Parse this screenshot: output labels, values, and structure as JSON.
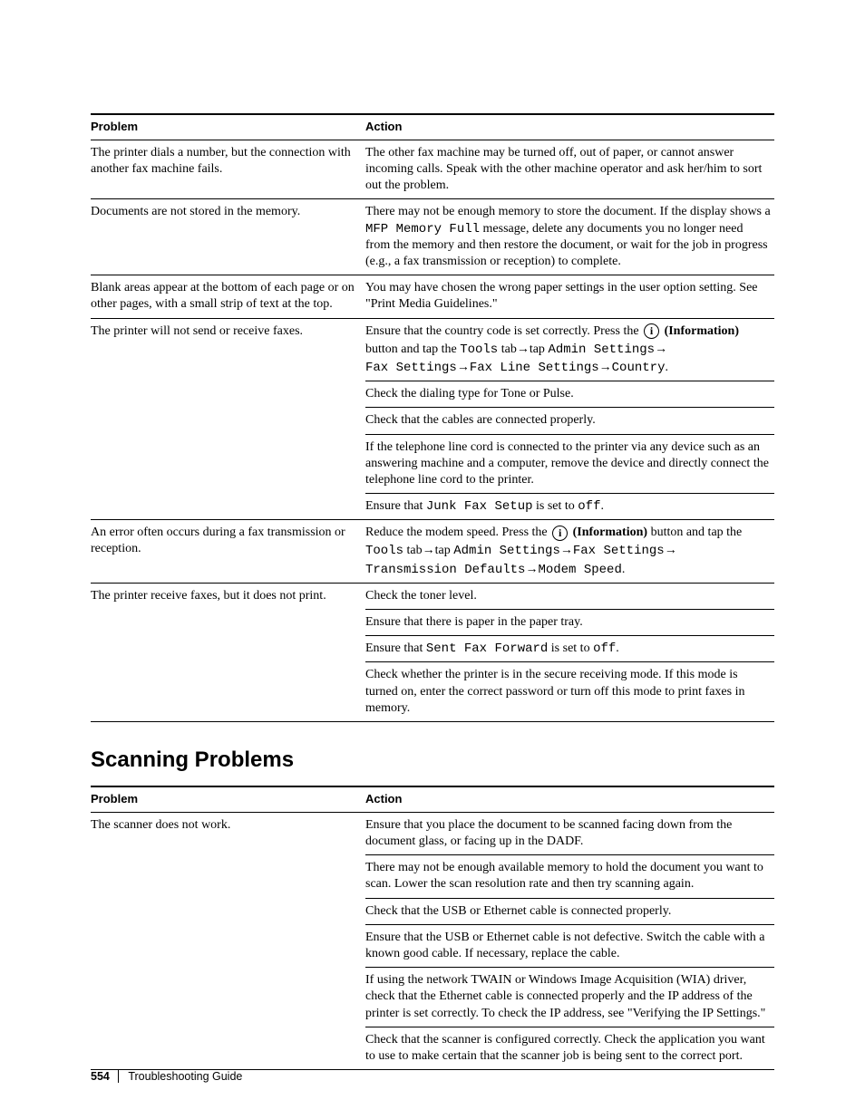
{
  "table1": {
    "headers": {
      "col1": "Problem",
      "col2": "Action"
    },
    "rows": [
      {
        "problem": "The printer dials a number, but the connection with another fax machine fails.",
        "actions": [
          {
            "type": "text",
            "content": "The other fax machine may be turned off, out of paper, or cannot answer incoming calls. Speak with the other machine operator and ask her/him to sort out the problem."
          }
        ]
      },
      {
        "problem": "Documents are not stored in the memory.",
        "actions": [
          {
            "type": "memory",
            "pre": "There may not be enough memory to store the document. If the display shows a ",
            "code": "MFP Memory Full",
            "post": " message, delete any documents you no longer need from the memory and then restore the document, or wait for the job in progress (e.g., a fax transmission or reception) to complete."
          }
        ]
      },
      {
        "problem": "Blank areas appear at the bottom of each page or on other pages, with a small strip of text at the top.",
        "actions": [
          {
            "type": "text",
            "content": "You may have chosen the wrong paper settings in the user option setting. See \"Print Media Guidelines.\""
          }
        ]
      },
      {
        "problem": "The printer will not send or receive faxes.",
        "actions": [
          {
            "type": "country",
            "pre": "Ensure that the country code is set correctly. Press the ",
            "info_label": "(Information)",
            "mid": " button and tap the ",
            "path1": "Tools",
            "tab_word": " tab",
            "arrow": "→",
            "tap_word": "tap ",
            "path2": "Admin Settings",
            "path3": "Fax Settings",
            "path4": "Fax Line Settings",
            "path5": "Country",
            "end": "."
          },
          {
            "type": "text",
            "content": "Check the dialing type for Tone or Pulse."
          },
          {
            "type": "text",
            "content": "Check that the cables are connected properly."
          },
          {
            "type": "text",
            "content": "If the telephone line cord is connected to the printer via any device such as an answering machine and a computer, remove the device and directly connect the telephone line cord to the printer."
          },
          {
            "type": "junkfax",
            "pre": "Ensure that ",
            "code": "Junk Fax Setup",
            "mid": " is set to ",
            "code2": "off",
            "end": "."
          }
        ]
      },
      {
        "problem": "An error often occurs during a fax transmission or reception.",
        "actions": [
          {
            "type": "modem",
            "pre": "Reduce the modem speed. Press the ",
            "info_label": "(Information)",
            "mid": " button and tap the ",
            "path1": "Tools",
            "tab_word": " tab",
            "arrow": "→",
            "tap_word": "tap ",
            "path2": "Admin Settings",
            "path3": "Fax Settings",
            "path4": "Transmission Defaults",
            "path5": "Modem Speed",
            "end": "."
          }
        ]
      },
      {
        "problem": "The printer receive faxes, but it does not print.",
        "actions": [
          {
            "type": "text",
            "content": "Check the toner level."
          },
          {
            "type": "text",
            "content": "Ensure that there is paper in the paper tray."
          },
          {
            "type": "sentfax",
            "pre": "Ensure that ",
            "code": "Sent Fax Forward",
            "mid": " is set to ",
            "code2": "off",
            "end": "."
          },
          {
            "type": "text",
            "content": "Check whether the printer is in the secure receiving mode. If this mode is turned on, enter the correct password or turn off this mode to print faxes in memory."
          }
        ]
      }
    ]
  },
  "section2_title": "Scanning Problems",
  "table2": {
    "headers": {
      "col1": "Problem",
      "col2": "Action"
    },
    "rows": [
      {
        "problem": "The scanner does not work.",
        "actions": [
          {
            "content": "Ensure that you place the document to be scanned facing down from the document glass, or facing up in the DADF."
          },
          {
            "content": "There may not be enough available memory to hold the document you want to scan. Lower the scan resolution rate and then try scanning again."
          },
          {
            "content": "Check that the USB or Ethernet cable is connected properly."
          },
          {
            "content": "Ensure that the USB or Ethernet cable is not defective. Switch the cable with a known good cable. If necessary, replace the cable."
          },
          {
            "content": "If using the network TWAIN or Windows Image Acquisition (WIA) driver, check that the Ethernet cable is connected properly and the IP address of the printer is set correctly. To check the IP address, see \"Verifying the IP Settings.\""
          },
          {
            "content": "Check that the scanner is configured correctly. Check the application you want to use to make certain that the scanner job is being sent to the correct port."
          }
        ]
      }
    ]
  },
  "footer": {
    "page": "554",
    "title": "Troubleshooting Guide"
  }
}
